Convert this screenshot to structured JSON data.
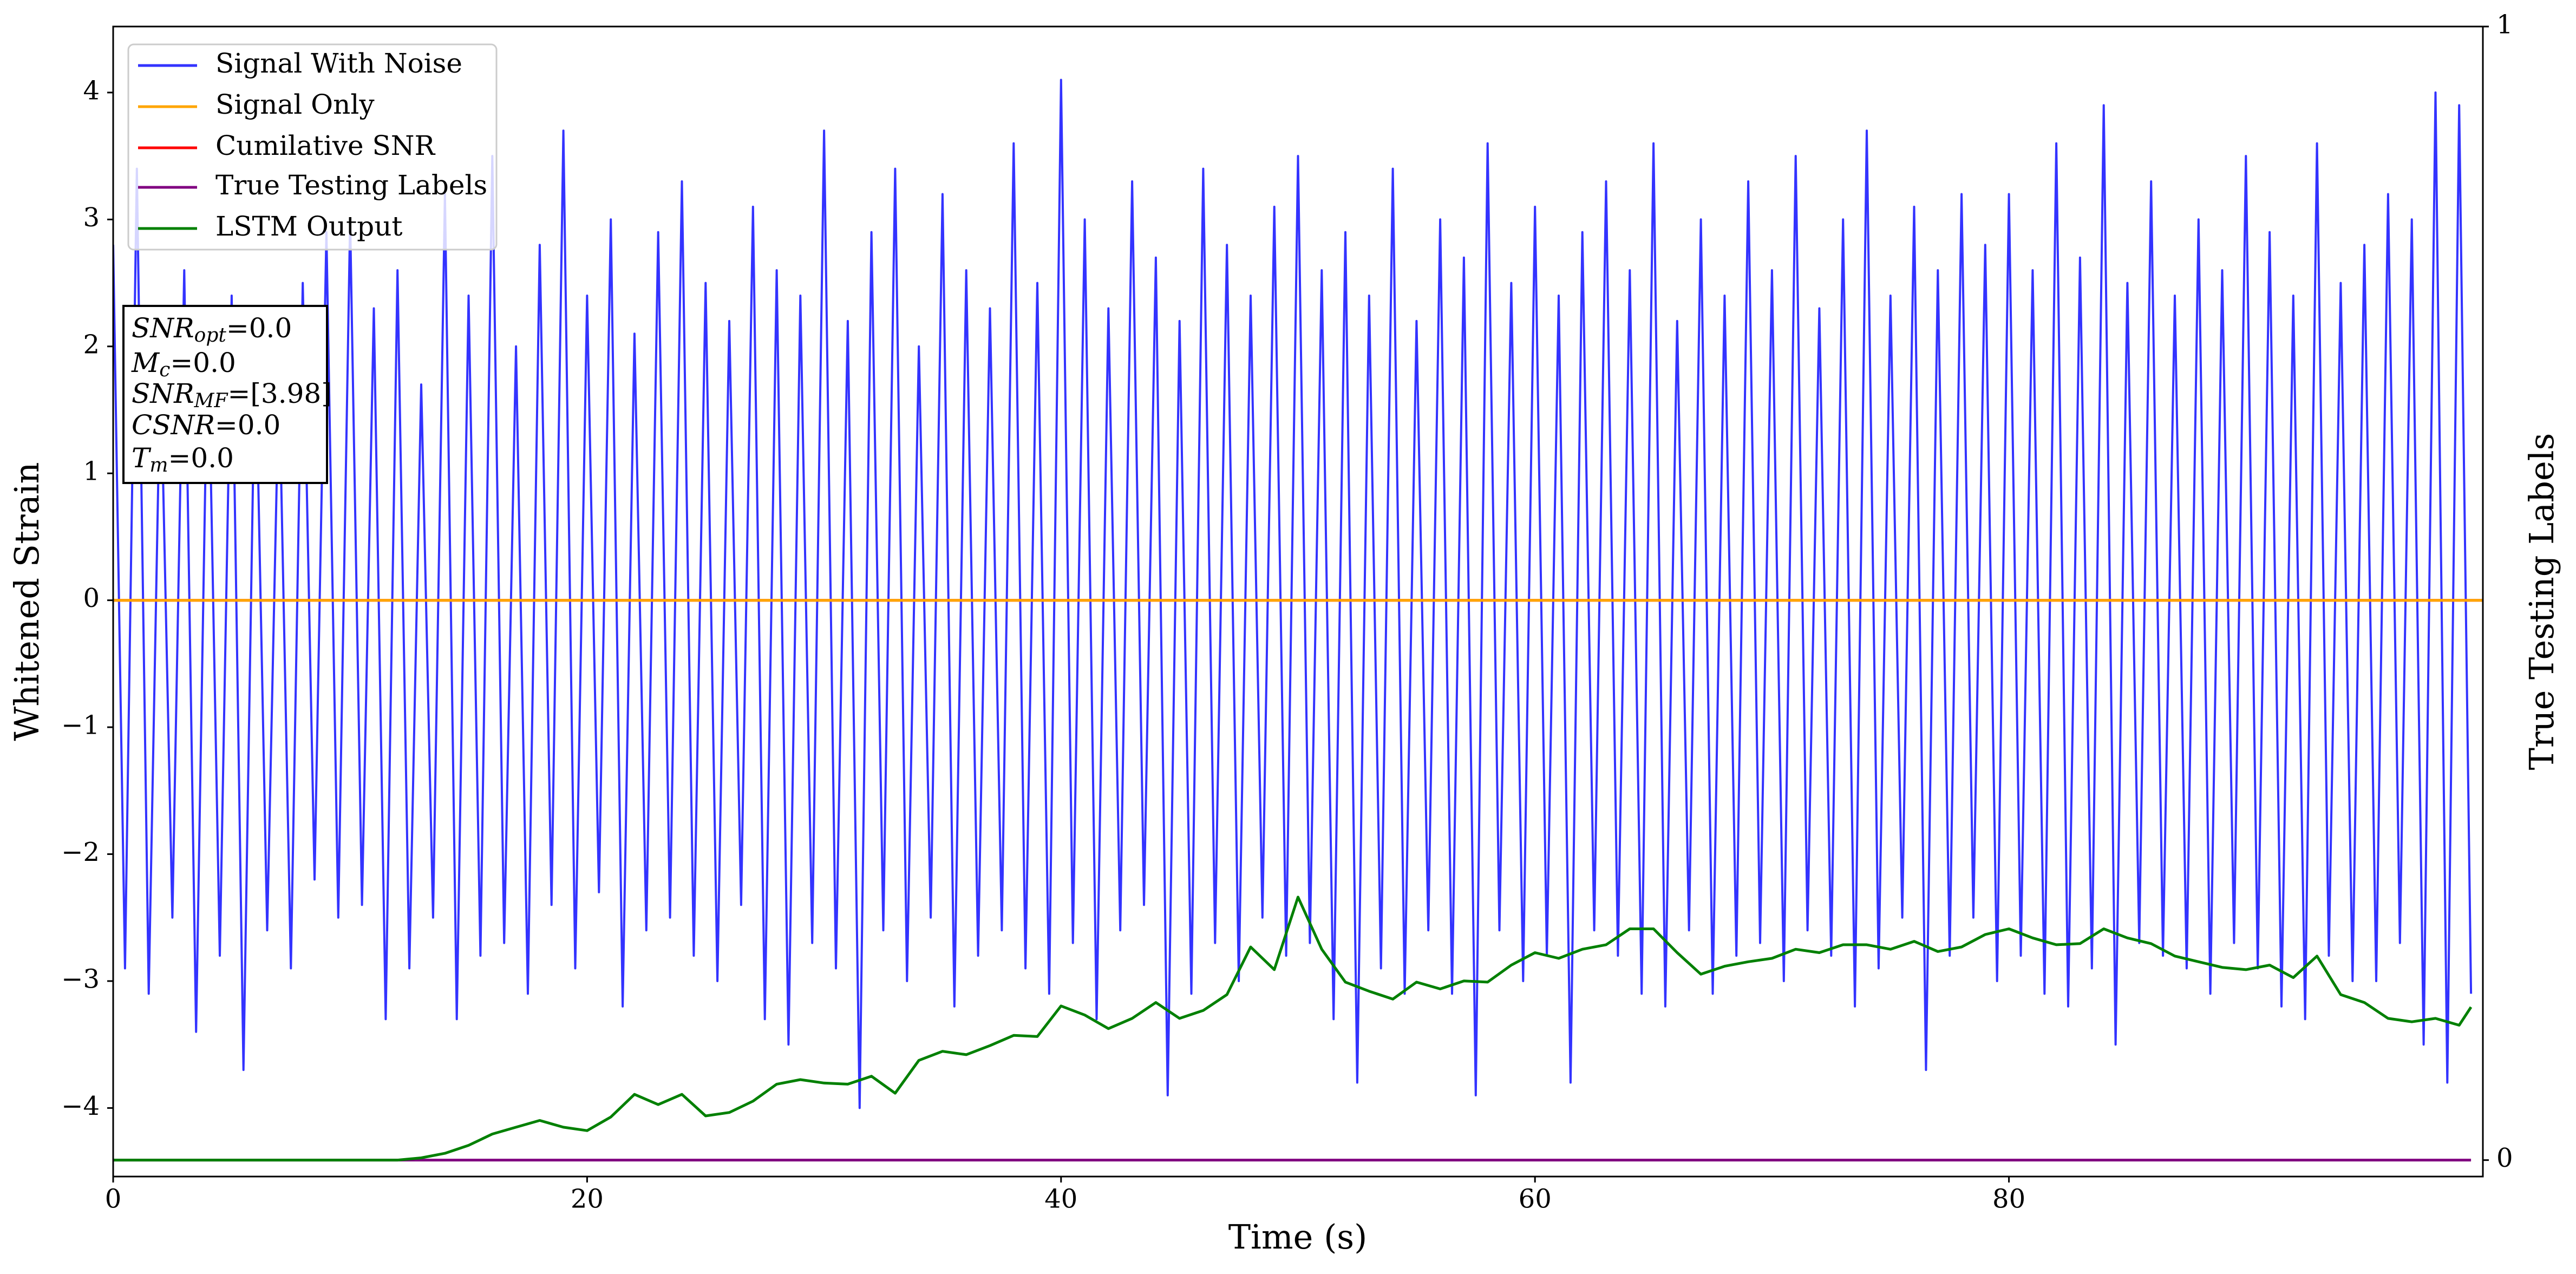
{
  "chart_data": {
    "type": "line",
    "xlabel": "Time (s)",
    "ylabel": "Whitened Strain",
    "y2label": "True Testing Labels",
    "xlim": [
      0,
      100
    ],
    "xticks": [
      0,
      20,
      40,
      60,
      80
    ],
    "ylim": [
      -4.54,
      4.52
    ],
    "yticks": [
      {
        "value": -4,
        "label": "−4"
      },
      {
        "value": -3,
        "label": "−3"
      },
      {
        "value": -2,
        "label": "−2"
      },
      {
        "value": -1,
        "label": "−1"
      },
      0,
      1,
      2,
      3,
      4
    ],
    "y2lim": [
      -0.0145,
      1
    ],
    "y2ticks": [
      0,
      1
    ],
    "legend": "upper left",
    "annotations": [
      {
        "text": "SNR",
        "sub": "opt",
        "rest": "=0.0"
      },
      {
        "text": "M",
        "sub": "c",
        "rest": "=0.0"
      },
      {
        "text": "SNR",
        "sub": "MF",
        "rest": "=[3.98]"
      },
      {
        "text": "CSNR",
        "rest": "=0.0"
      },
      {
        "text": "T",
        "sub": "m",
        "rest": "=0.0"
      }
    ],
    "series": [
      {
        "name": "Signal With Noise",
        "color": "#3333ff",
        "x": [
          0,
          0.5,
          1,
          1.5,
          2,
          2.5,
          3,
          3.5,
          4,
          4.5,
          5,
          5.5,
          6,
          6.5,
          7,
          7.5,
          8,
          8.5,
          9,
          9.5,
          10,
          10.5,
          11,
          11.5,
          12,
          12.5,
          13,
          13.5,
          14,
          14.5,
          15,
          15.5,
          16,
          16.5,
          17,
          17.5,
          18,
          18.5,
          19,
          19.5,
          20,
          20.5,
          21,
          21.5,
          22,
          22.5,
          23,
          23.5,
          24,
          24.5,
          25,
          25.5,
          26,
          26.5,
          27,
          27.5,
          28,
          28.5,
          29,
          29.5,
          30,
          30.5,
          31,
          31.5,
          32,
          32.5,
          33,
          33.5,
          34,
          34.5,
          35,
          35.5,
          36,
          36.5,
          37,
          37.5,
          38,
          38.5,
          39,
          39.5,
          40,
          40.5,
          41,
          41.5,
          42,
          42.5,
          43,
          43.5,
          44,
          44.5,
          45,
          45.5,
          46,
          46.5,
          47,
          47.5,
          48,
          48.5,
          49,
          49.5,
          50,
          50.5,
          51,
          51.5,
          52,
          52.5,
          53,
          53.5,
          54,
          54.5,
          55,
          55.5,
          56,
          56.5,
          57,
          57.5,
          58,
          58.5,
          59,
          59.5,
          60,
          60.5,
          61,
          61.5,
          62,
          62.5,
          63,
          63.5,
          64,
          64.5,
          65,
          65.5,
          66,
          66.5,
          67,
          67.5,
          68,
          68.5,
          69,
          69.5,
          70,
          70.5,
          71,
          71.5,
          72,
          72.5,
          73,
          73.5,
          74,
          74.5,
          75,
          75.5,
          76,
          76.5,
          77,
          77.5,
          78,
          78.5,
          79,
          79.5,
          80,
          80.5,
          81,
          81.5,
          82,
          82.5,
          83,
          83.5,
          84,
          84.5,
          85,
          85.5,
          86,
          86.5,
          87,
          87.5,
          88,
          88.5,
          89,
          89.5,
          90,
          90.5,
          91,
          91.5,
          92,
          92.5,
          93,
          93.5,
          94,
          94.5,
          95,
          95.5,
          96,
          96.5,
          97,
          97.5,
          98,
          98.5,
          99,
          99.5
        ],
        "values": [
          2.8,
          -2.9,
          3.4,
          -3.1,
          1.9,
          -2.5,
          2.6,
          -3.4,
          2.2,
          -2.8,
          2.4,
          -3.7,
          2.1,
          -2.6,
          1.8,
          -2.9,
          2.5,
          -2.2,
          2.9,
          -2.5,
          3.0,
          -2.4,
          2.3,
          -3.3,
          2.6,
          -2.9,
          1.7,
          -2.5,
          3.2,
          -3.3,
          2.4,
          -2.8,
          3.5,
          -2.7,
          2.0,
          -3.1,
          2.8,
          -2.4,
          3.7,
          -2.9,
          2.4,
          -2.3,
          3.0,
          -3.2,
          2.1,
          -2.6,
          2.9,
          -2.5,
          3.3,
          -2.8,
          2.5,
          -3.0,
          2.2,
          -2.4,
          3.1,
          -3.3,
          2.6,
          -3.5,
          2.4,
          -2.7,
          3.7,
          -2.9,
          2.2,
          -4.0,
          2.9,
          -2.6,
          3.4,
          -3.0,
          2.0,
          -2.5,
          3.2,
          -3.2,
          2.6,
          -2.8,
          2.3,
          -2.6,
          3.6,
          -2.9,
          2.5,
          -3.1,
          4.1,
          -2.7,
          3.0,
          -3.3,
          2.3,
          -2.6,
          3.3,
          -2.4,
          2.7,
          -3.9,
          2.2,
          -3.1,
          3.4,
          -2.7,
          2.8,
          -3.0,
          2.4,
          -2.5,
          3.1,
          -2.8,
          3.5,
          -2.7,
          2.6,
          -3.3,
          2.9,
          -3.8,
          2.4,
          -2.9,
          3.4,
          -3.1,
          2.2,
          -2.6,
          3.0,
          -3.1,
          2.7,
          -3.9,
          3.6,
          -2.6,
          2.5,
          -3.0,
          3.1,
          -2.8,
          2.4,
          -3.8,
          2.9,
          -2.6,
          3.3,
          -2.8,
          2.6,
          -3.1,
          3.6,
          -3.2,
          2.2,
          -2.6,
          3.0,
          -3.1,
          2.4,
          -2.8,
          3.3,
          -2.7,
          2.6,
          -3.0,
          3.5,
          -2.6,
          2.3,
          -2.8,
          3.0,
          -3.2,
          3.7,
          -2.9,
          2.4,
          -2.5,
          3.1,
          -3.7,
          2.6,
          -2.8,
          3.2,
          -2.5,
          2.8,
          -3.0,
          3.2,
          -2.8,
          2.6,
          -3.1,
          3.6,
          -3.2,
          2.7,
          -2.9,
          3.9,
          -3.5,
          2.5,
          -2.7,
          3.3,
          -2.8,
          2.4,
          -2.9,
          3.0,
          -3.1,
          2.6,
          -2.7,
          3.5,
          -2.9,
          2.9,
          -3.2,
          2.4,
          -3.3,
          3.6,
          -2.8,
          2.5,
          -3.0,
          2.8,
          -3.0,
          3.2,
          -2.7,
          3.0,
          -3.5,
          4.0,
          -3.8,
          3.9,
          -3.1
        ]
      },
      {
        "name": "Signal Only",
        "color": "#ffa500",
        "x": [
          0,
          100
        ],
        "values": [
          0,
          0
        ]
      },
      {
        "name": "Cumilative SNR",
        "color": "#ff0000",
        "x": [
          0,
          100
        ],
        "values": [
          0,
          0
        ]
      },
      {
        "name": "True Testing Labels",
        "color": "#800080",
        "axis": "y2",
        "x": [
          0,
          99.5
        ],
        "values": [
          0,
          0
        ]
      },
      {
        "name": "LSTM Output",
        "color": "#008000",
        "axis": "y2",
        "x": [
          0,
          1,
          2,
          3,
          4,
          5,
          6,
          7,
          8,
          9,
          10,
          11,
          12,
          13,
          14,
          15,
          16,
          17,
          18,
          19,
          20,
          21,
          22,
          23,
          24,
          25,
          26,
          27,
          28,
          29,
          30,
          31,
          32,
          33,
          34,
          35,
          36,
          37,
          38,
          39,
          40,
          41,
          42,
          43,
          44,
          45,
          46,
          47,
          48,
          49,
          50,
          51,
          52,
          53,
          54,
          55,
          56,
          57,
          58,
          59,
          60,
          61,
          62,
          63,
          64,
          65,
          66,
          67,
          68,
          69,
          70,
          71,
          72,
          73,
          74,
          75,
          76,
          77,
          78,
          79,
          80,
          81,
          82,
          83,
          84,
          85,
          86,
          87,
          88,
          89,
          90,
          91,
          92,
          93,
          94,
          95,
          96,
          97,
          98,
          99,
          99.5
        ],
        "values": [
          0,
          0,
          0,
          0,
          0,
          0,
          0,
          0,
          0,
          0,
          0,
          0,
          0,
          0.002,
          0.006,
          0.013,
          0.023,
          0.029,
          0.035,
          0.029,
          0.026,
          0.038,
          0.058,
          0.049,
          0.058,
          0.039,
          0.042,
          0.052,
          0.067,
          0.071,
          0.068,
          0.067,
          0.074,
          0.059,
          0.088,
          0.096,
          0.093,
          0.101,
          0.11,
          0.109,
          0.136,
          0.128,
          0.116,
          0.125,
          0.139,
          0.125,
          0.132,
          0.146,
          0.188,
          0.168,
          0.232,
          0.186,
          0.157,
          0.149,
          0.142,
          0.157,
          0.151,
          0.158,
          0.157,
          0.172,
          0.183,
          0.178,
          0.186,
          0.19,
          0.204,
          0.204,
          0.183,
          0.164,
          0.171,
          0.175,
          0.178,
          0.186,
          0.183,
          0.19,
          0.19,
          0.186,
          0.193,
          0.184,
          0.188,
          0.199,
          0.204,
          0.196,
          0.19,
          0.191,
          0.204,
          0.196,
          0.191,
          0.18,
          0.175,
          0.17,
          0.168,
          0.172,
          0.161,
          0.18,
          0.146,
          0.139,
          0.125,
          0.122,
          0.125,
          0.119,
          0.135
        ]
      }
    ]
  }
}
